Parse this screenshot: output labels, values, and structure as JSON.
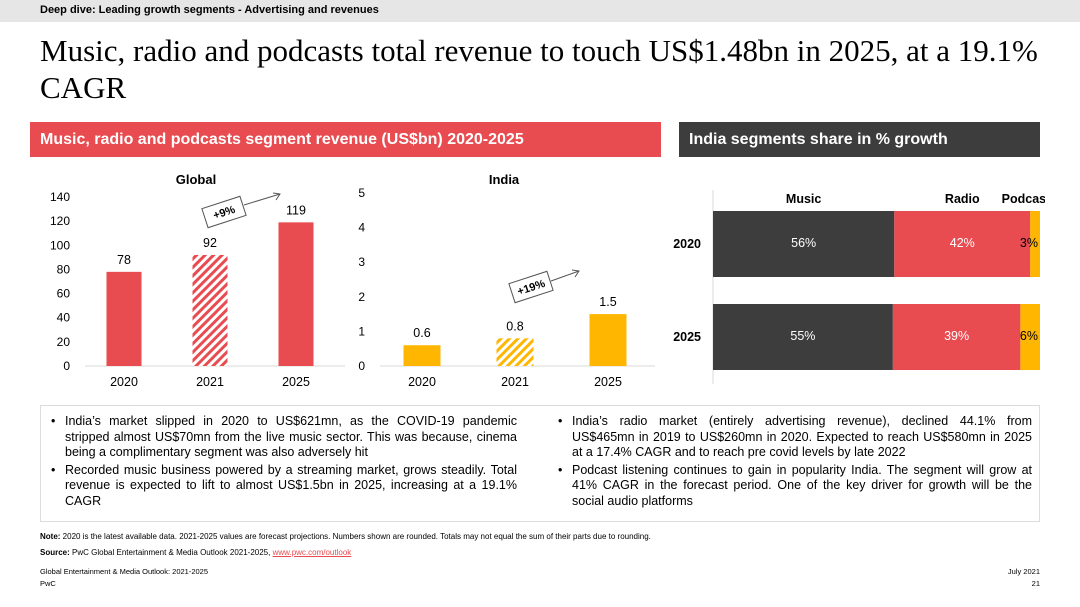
{
  "topbar": {
    "label": "Deep dive: Leading growth segments - Advertising and revenues"
  },
  "page_title": "Music, radio and podcasts total revenue to touch US$1.48bn in 2025, at a 19.1% CAGR",
  "left_header": "Music, radio and podcasts segment revenue (US$bn) 2020-2025",
  "right_header": "India segments share in % growth",
  "colors": {
    "red": "#e84b50",
    "amber": "#ffb600",
    "dark": "#3d3d3d",
    "pink_stripe": "#e84b50",
    "amber_stripe": "#ffb600"
  },
  "chart_data": [
    {
      "type": "bar",
      "title": "Global",
      "categories": [
        "2020",
        "2021",
        "2025"
      ],
      "values": [
        78,
        92,
        119
      ],
      "value_labels": [
        "78",
        "92",
        "119"
      ],
      "forecast_pattern": [
        "solid",
        "hatched",
        "solid"
      ],
      "ylim": [
        0,
        140
      ],
      "yticks": [
        "0",
        "20",
        "40",
        "60",
        "80",
        "100",
        "120",
        "140"
      ],
      "annotation": "+9%",
      "color": "#e84b50"
    },
    {
      "type": "bar",
      "title": "India",
      "categories": [
        "2020",
        "2021",
        "2025"
      ],
      "values": [
        0.6,
        0.8,
        1.5
      ],
      "value_labels": [
        "0.6",
        "0.8",
        "1.5"
      ],
      "forecast_pattern": [
        "solid",
        "hatched",
        "solid"
      ],
      "ylim": [
        0,
        5
      ],
      "yticks": [
        "0",
        "1",
        "2",
        "3",
        "4",
        "5"
      ],
      "annotation": "+19%",
      "color": "#ffb600"
    },
    {
      "type": "bar",
      "stacked": true,
      "orientation": "horizontal",
      "categories": [
        "2020",
        "2025"
      ],
      "series": [
        {
          "name": "Music",
          "values": [
            56,
            55
          ],
          "labels": [
            "56%",
            "55%"
          ],
          "color": "#3d3d3d"
        },
        {
          "name": "Radio",
          "values": [
            42,
            39
          ],
          "labels": [
            "42%",
            "39%"
          ],
          "color": "#e84b50"
        },
        {
          "name": "Podcast",
          "values": [
            3,
            6
          ],
          "labels": [
            "3%",
            "6%"
          ],
          "color": "#ffb600"
        }
      ],
      "legend": "top"
    }
  ],
  "bullets_left": [
    "India’s market slipped in 2020 to US$621mn, as the COVID-19 pandemic stripped almost US$70mn from the live music sector. This was because, cinema being a complimentary segment was also adversely hit",
    "Recorded music business powered by a streaming market, grows steadily. Total revenue is expected to lift to almost US$1.5bn in 2025, increasing at a 19.1% CAGR"
  ],
  "bullets_right": [
    "India’s radio market (entirely advertising revenue), declined 44.1% from US$465mn in 2019 to US$260mn in 2020. Expected to reach US$580mn in 2025 at a 17.4% CAGR and to reach pre covid levels by late 2022",
    "Podcast listening continues to gain in popularity India. The segment will grow at 41% CAGR in the forecast period. One of the key driver for growth will be the social audio platforms"
  ],
  "note": {
    "label": "Note:",
    "text": " 2020 is the latest available data. 2021-2025 values are forecast projections. Numbers shown are rounded. Totals may not equal the sum of their parts due to rounding."
  },
  "source": {
    "label": "Source:",
    "text": " PwC Global Entertainment & Media Outlook 2021-2025, ",
    "link": "www.pwc.com/outlook"
  },
  "footer": {
    "left1": "Global Entertainment & Media Outlook: 2021-2025",
    "left2": "PwC",
    "right1": "July 2021",
    "right2": "21"
  }
}
